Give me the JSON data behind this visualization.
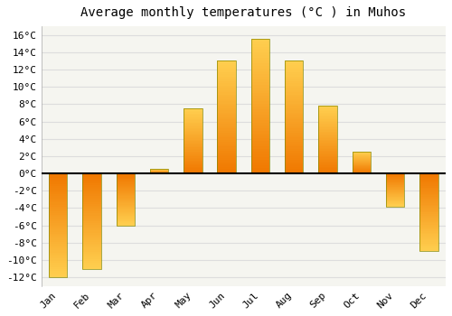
{
  "title": "Average monthly temperatures (°C ) in Muhos",
  "months": [
    "Jan",
    "Feb",
    "Mar",
    "Apr",
    "May",
    "Jun",
    "Jul",
    "Aug",
    "Sep",
    "Oct",
    "Nov",
    "Dec"
  ],
  "values": [
    -12,
    -11,
    -6,
    0.5,
    7.5,
    13,
    15.5,
    13,
    7.8,
    2.5,
    -3.8,
    -9
  ],
  "bar_color_top": "#FFD050",
  "bar_color_bottom": "#F07800",
  "bar_edge_color": "#888800",
  "ylim": [
    -13,
    17
  ],
  "yticks": [
    -12,
    -10,
    -8,
    -6,
    -4,
    -2,
    0,
    2,
    4,
    6,
    8,
    10,
    12,
    14,
    16
  ],
  "plot_bg_color": "#F5F5F0",
  "fig_bg_color": "#FFFFFF",
  "grid_color": "#DDDDDD",
  "zero_line_color": "#000000",
  "title_fontsize": 10,
  "tick_fontsize": 8,
  "bar_width": 0.55
}
